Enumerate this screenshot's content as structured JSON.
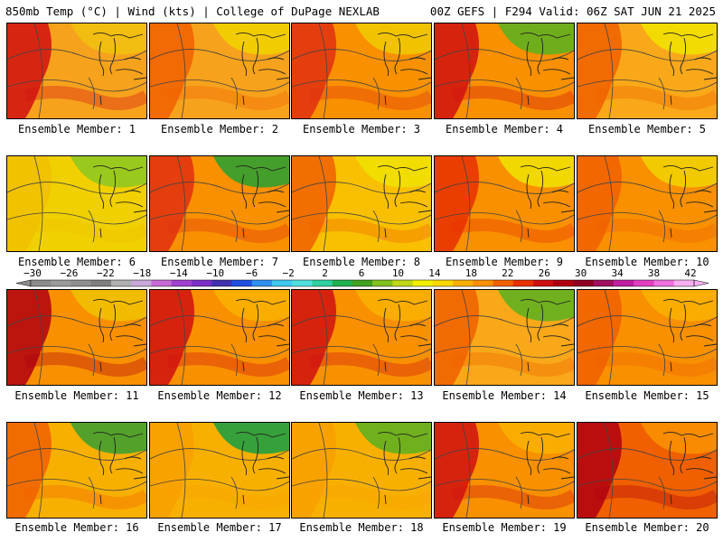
{
  "header": {
    "left": "850mb Temp (°C) | Wind (kts) | College of DuPage NEXLAB",
    "right": "00Z GEFS | F294 Valid: 06Z SAT JUN 21 2025"
  },
  "colorbar": {
    "labels": [
      "−30",
      "−26",
      "−22",
      "−18",
      "−14",
      "−10",
      "−6",
      "−2",
      "2",
      "6",
      "10",
      "14",
      "18",
      "22",
      "26",
      "30",
      "34",
      "38",
      "42"
    ],
    "colors": [
      "#8c8c8c",
      "#9a9a9a",
      "#8f8f8f",
      "#7f7f7f",
      "#b0b0b0",
      "#c7a8d8",
      "#c66ad6",
      "#a040d0",
      "#7a30c8",
      "#4030b0",
      "#2050e0",
      "#3090f0",
      "#40c8f0",
      "#50e0e0",
      "#30d0a0",
      "#20b050",
      "#40a020",
      "#80c020",
      "#c0d818",
      "#f0f000",
      "#f8d800",
      "#f8b000",
      "#f89000",
      "#f06000",
      "#e83000",
      "#d01010",
      "#b00010",
      "#900020",
      "#a01060",
      "#c020a0",
      "#e040c0",
      "#f070e0",
      "#f8b0f0"
    ]
  },
  "panels": [
    {
      "label": "Ensemble Member: 1"
    },
    {
      "label": "Ensemble Member: 2"
    },
    {
      "label": "Ensemble Member: 3"
    },
    {
      "label": "Ensemble Member: 4"
    },
    {
      "label": "Ensemble Member: 5"
    },
    {
      "label": "Ensemble Member: 6"
    },
    {
      "label": "Ensemble Member: 7"
    },
    {
      "label": "Ensemble Member: 8"
    },
    {
      "label": "Ensemble Member: 9"
    },
    {
      "label": "Ensemble Member: 10"
    },
    {
      "label": "Ensemble Member: 11"
    },
    {
      "label": "Ensemble Member: 12"
    },
    {
      "label": "Ensemble Member: 13"
    },
    {
      "label": "Ensemble Member: 14"
    },
    {
      "label": "Ensemble Member: 15"
    },
    {
      "label": "Ensemble Member: 16"
    },
    {
      "label": "Ensemble Member: 17"
    },
    {
      "label": "Ensemble Member: 18"
    },
    {
      "label": "Ensemble Member: 19"
    },
    {
      "label": "Ensemble Member: 20"
    }
  ]
}
